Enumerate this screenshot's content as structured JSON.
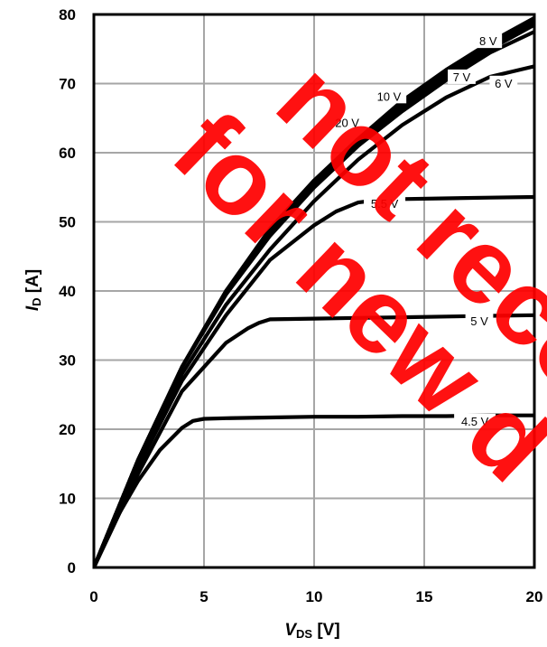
{
  "chart_data": {
    "type": "line",
    "xlabel": "V",
    "xlabel_sub": "DS",
    "xlabel_unit": " [V]",
    "ylabel": "I",
    "ylabel_sub": "D",
    "ylabel_unit": " [A]",
    "xlim": [
      0,
      20
    ],
    "ylim": [
      0,
      80
    ],
    "x_ticks": [
      "0",
      "5",
      "10",
      "15",
      "20"
    ],
    "y_ticks": [
      "0",
      "10",
      "20",
      "30",
      "40",
      "50",
      "60",
      "70",
      "80"
    ],
    "grid": true,
    "series": [
      {
        "name": "20 V",
        "x": [
          0,
          2,
          4,
          6,
          8,
          10,
          12,
          14,
          16,
          18,
          20
        ],
        "y": [
          0,
          15.5,
          29,
          39.5,
          48,
          55,
          61,
          66.5,
          71,
          75,
          78.5
        ]
      },
      {
        "name": "10 V",
        "x": [
          0,
          2,
          4,
          6,
          8,
          10,
          12,
          14,
          16,
          18,
          20
        ],
        "y": [
          0,
          15.5,
          29,
          40,
          48.5,
          55.5,
          61.5,
          67,
          71.5,
          75.5,
          79
        ]
      },
      {
        "name": "8 V",
        "x": [
          0,
          2,
          4,
          6,
          8,
          10,
          12,
          14,
          16,
          18,
          20
        ],
        "y": [
          0,
          15.5,
          29,
          40,
          49,
          56,
          62,
          67.5,
          72,
          76,
          79.5
        ]
      },
      {
        "name": "7 V",
        "x": [
          0,
          2,
          4,
          6,
          8,
          10,
          12,
          14,
          16,
          18,
          20
        ],
        "y": [
          0,
          15.5,
          29,
          39.5,
          48,
          55,
          61,
          66,
          70.5,
          74.5,
          77.5
        ]
      },
      {
        "name": "6 V",
        "x": [
          0,
          2,
          4,
          6,
          8,
          10,
          12,
          14,
          16,
          18,
          20
        ],
        "y": [
          0,
          15,
          28,
          38,
          46,
          53,
          59,
          64,
          68,
          71,
          72.5
        ]
      },
      {
        "name": "5.5 V",
        "x": [
          0,
          2,
          4,
          6,
          8,
          10,
          11,
          12,
          13,
          14,
          16,
          18,
          20
        ],
        "y": [
          0,
          14.5,
          27,
          36.5,
          44.5,
          49.5,
          51.5,
          52.8,
          53.2,
          53.3,
          53.4,
          53.5,
          53.6
        ]
      },
      {
        "name": "5 V",
        "x": [
          0,
          2,
          4,
          6,
          7,
          7.5,
          8,
          10,
          12,
          14,
          16,
          18,
          20
        ],
        "y": [
          0,
          13.5,
          25.5,
          32.5,
          34.6,
          35.4,
          35.9,
          36,
          36.1,
          36.2,
          36.3,
          36.4,
          36.5
        ]
      },
      {
        "name": "4.5 V",
        "x": [
          0,
          1,
          2,
          3,
          4,
          4.5,
          5,
          6,
          8,
          10,
          12,
          14,
          16,
          18,
          20
        ],
        "y": [
          0,
          7,
          12.5,
          17,
          20.2,
          21.2,
          21.5,
          21.6,
          21.7,
          21.8,
          21.8,
          21.9,
          21.9,
          22,
          22
        ]
      }
    ],
    "watermark_lines": [
      "not reco",
      "for new d"
    ]
  }
}
